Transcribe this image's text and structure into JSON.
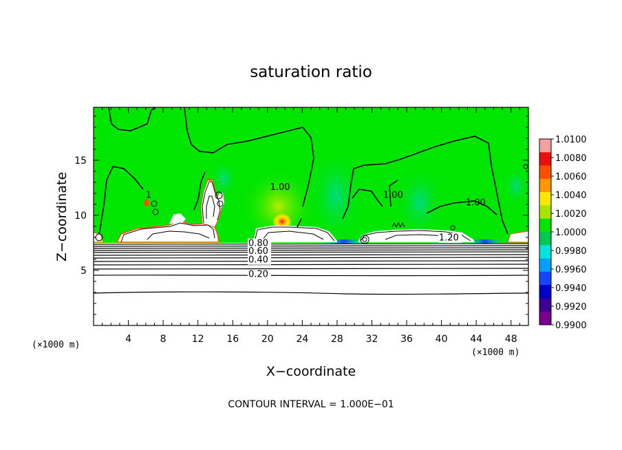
{
  "chart_data": {
    "type": "heatmap",
    "title": "saturation ratio",
    "xlabel": "X−coordinate",
    "ylabel": "Z−coordinate",
    "x_unit_left": "(×1000 m)",
    "x_unit_right": "(×1000 m)",
    "footer": "CONTOUR INTERVAL = 1.000E−01",
    "xlim": [
      0,
      50
    ],
    "ylim": [
      0,
      19.8
    ],
    "xticks": [
      4,
      8,
      12,
      16,
      20,
      24,
      28,
      32,
      36,
      40,
      44,
      48
    ],
    "yticks": [
      5,
      10,
      15
    ],
    "colorbar": {
      "labels": [
        "1.0100",
        "1.0080",
        "1.0060",
        "1.0040",
        "1.0020",
        "1.0000",
        "0.9980",
        "0.9960",
        "0.9940",
        "0.9920",
        "0.9900"
      ],
      "colors": [
        "#f4a0a0",
        "#e81010",
        "#ff5000",
        "#ff9600",
        "#ffe600",
        "#a8e600",
        "#00e600",
        "#00c850",
        "#00e6dc",
        "#00a0ff",
        "#1446ff",
        "#0000c8",
        "#3c0096",
        "#78008c"
      ]
    },
    "contour_labels": [
      {
        "text": "1.00",
        "x": 20.3,
        "y": 12.3
      },
      {
        "text": "1.00",
        "x": 33.3,
        "y": 11.6
      },
      {
        "text": "1.00",
        "x": 42.8,
        "y": 10.9
      },
      {
        "text": "1.20",
        "x": 39.7,
        "y": 7.7
      },
      {
        "text": "0.80",
        "x": 17.8,
        "y": 7.2
      },
      {
        "text": "0.60",
        "x": 17.8,
        "y": 6.5
      },
      {
        "text": "0.40",
        "x": 17.8,
        "y": 5.7
      },
      {
        "text": "0.20",
        "x": 17.8,
        "y": 4.4
      },
      {
        "text": "1",
        "x": 6.0,
        "y": 11.6
      }
    ]
  }
}
